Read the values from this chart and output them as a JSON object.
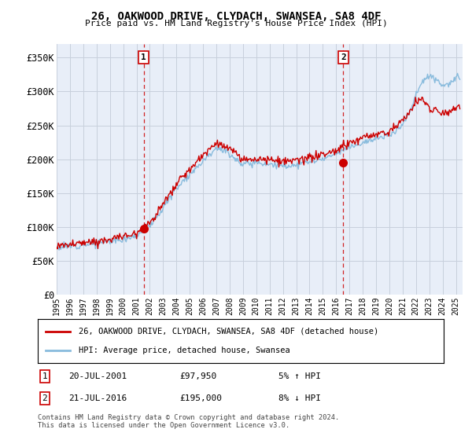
{
  "title": "26, OAKWOOD DRIVE, CLYDACH, SWANSEA, SA8 4DF",
  "subtitle": "Price paid vs. HM Land Registry's House Price Index (HPI)",
  "ylabel_ticks": [
    "£0",
    "£50K",
    "£100K",
    "£150K",
    "£200K",
    "£250K",
    "£300K",
    "£350K"
  ],
  "ytick_vals": [
    0,
    50000,
    100000,
    150000,
    200000,
    250000,
    300000,
    350000
  ],
  "ylim": [
    0,
    370000
  ],
  "xlim_start": 1995.0,
  "xlim_end": 2025.5,
  "sale1_x": 2001.54,
  "sale1_y": 97950,
  "sale2_x": 2016.54,
  "sale2_y": 195000,
  "sale1_label": "20-JUL-2001",
  "sale1_price": "£97,950",
  "sale1_hpi": "5% ↑ HPI",
  "sale2_label": "21-JUL-2016",
  "sale2_price": "£195,000",
  "sale2_hpi": "8% ↓ HPI",
  "legend_line1": "26, OAKWOOD DRIVE, CLYDACH, SWANSEA, SA8 4DF (detached house)",
  "legend_line2": "HPI: Average price, detached house, Swansea",
  "footer": "Contains HM Land Registry data © Crown copyright and database right 2024.\nThis data is licensed under the Open Government Licence v3.0.",
  "line_color_red": "#cc0000",
  "line_color_blue": "#88bbdd",
  "bg_color": "#e8eef8",
  "grid_color": "#c8d0dc",
  "vline_color": "#cc0000"
}
